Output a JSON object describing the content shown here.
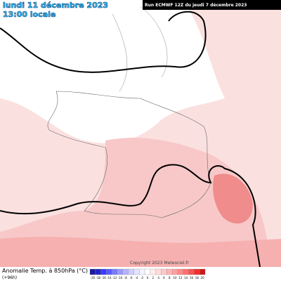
{
  "header": {
    "date": "lundi 11 décembre 2023",
    "time": "13:00 locale",
    "run": "Run ECMWF 12Z du jeudi 7 décembre 2023"
  },
  "footer": {
    "title": "Anomalie Temp. à 850hPa (°C)",
    "lead": "(+96h)",
    "copyright": "Copyright 2023 Meteociel.fr"
  },
  "legend": {
    "labels": [
      -20,
      -18,
      -16,
      -14,
      -12,
      -10,
      -8,
      -6,
      -4,
      -2,
      0,
      2,
      4,
      6,
      8,
      10,
      12,
      14,
      16,
      18,
      20
    ],
    "colors": [
      "#1a1aa0",
      "#2424c8",
      "#3a3aff",
      "#5a5aff",
      "#7a7aff",
      "#9a9aff",
      "#b4b4ff",
      "#cdcdff",
      "#e4e4ff",
      "#f4f4ff",
      "#ffffff",
      "#ffeeee",
      "#ffdcdc",
      "#ffc8c8",
      "#ffb4b4",
      "#ffa0a0",
      "#ff8a8a",
      "#ff7070",
      "#ff5050",
      "#f03030",
      "#d01818"
    ]
  }
}
